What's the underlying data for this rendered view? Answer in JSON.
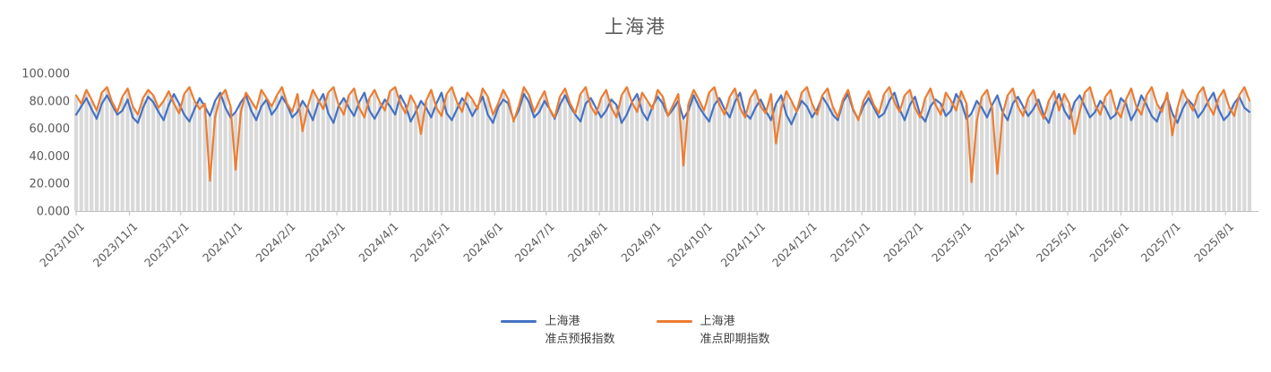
{
  "title": "上海港",
  "colors": {
    "series_forecast": "#4472C4",
    "series_spot": "#ED7D31",
    "drop_line": "#D9D9D9",
    "axis_line": "#BFBFBF",
    "tick_text": "#595959",
    "title_text": "#5B5B5B",
    "legend_text": "#404040"
  },
  "legend": {
    "item1_label": "上海港\n准点预报指数",
    "item2_label": "上海港\n准点即期指数"
  },
  "chart_data": {
    "type": "line",
    "title": "上海港",
    "xlabel": "",
    "ylabel": "",
    "ylim": [
      0,
      100
    ],
    "y_tick_labels": [
      "0.000",
      "20.000",
      "40.000",
      "60.000",
      "80.000",
      "100.000"
    ],
    "x_start_date": "2023/10/1",
    "x_step_days": 3,
    "x_tick_labels": [
      "2023/10/1",
      "2023/11/1",
      "2023/12/1",
      "2024/1/1",
      "2024/2/1",
      "2024/3/1",
      "2024/4/1",
      "2024/5/1",
      "2024/6/1",
      "2024/7/1",
      "2024/8/1",
      "2024/9/1",
      "2024/10/1",
      "2024/11/1",
      "2024/12/1",
      "2025/1/1",
      "2025/2/1",
      "2025/3/1",
      "2025/4/1",
      "2025/5/1",
      "2025/6/1",
      "2025/7/1",
      "2025/8/1"
    ],
    "grid": "no horizontal gridlines; vertical gray drop lines at every data point",
    "legend_position": "bottom",
    "series": [
      {
        "name": "上海港准点预报指数",
        "color": "#4472C4",
        "values": [
          70,
          76,
          82,
          74,
          67,
          78,
          84,
          77,
          70,
          73,
          81,
          68,
          64,
          75,
          83,
          79,
          72,
          66,
          77,
          85,
          78,
          70,
          65,
          74,
          82,
          76,
          69,
          80,
          86,
          75,
          68,
          72,
          79,
          84,
          73,
          66,
          76,
          81,
          70,
          75,
          83,
          77,
          68,
          72,
          80,
          74,
          66,
          78,
          85,
          71,
          64,
          76,
          82,
          75,
          69,
          79,
          86,
          73,
          67,
          74,
          81,
          76,
          70,
          84,
          77,
          65,
          72,
          80,
          75,
          68,
          78,
          86,
          71,
          66,
          74,
          82,
          77,
          69,
          76,
          83,
          70,
          64,
          75,
          81,
          78,
          66,
          73,
          85,
          79,
          68,
          72,
          80,
          74,
          67,
          77,
          84,
          76,
          70,
          65,
          78,
          82,
          75,
          68,
          73,
          81,
          77,
          64,
          70,
          79,
          85,
          72,
          66,
          76,
          83,
          78,
          69,
          74,
          80,
          67,
          73,
          84,
          76,
          70,
          65,
          77,
          82,
          74,
          68,
          79,
          86,
          71,
          67,
          75,
          81,
          73,
          66,
          78,
          84,
          70,
          63,
          72,
          80,
          76,
          68,
          74,
          83,
          77,
          70,
          66,
          79,
          85,
          73,
          67,
          76,
          82,
          75,
          68,
          71,
          80,
          86,
          74,
          66,
          77,
          83,
          70,
          65,
          76,
          81,
          78,
          69,
          73,
          85,
          79,
          67,
          71,
          80,
          75,
          68,
          77,
          84,
          72,
          66,
          78,
          83,
          76,
          69,
          74,
          81,
          70,
          64,
          77,
          85,
          73,
          67,
          79,
          84,
          76,
          68,
          72,
          80,
          75,
          67,
          70,
          82,
          78,
          66,
          73,
          84,
          77,
          69,
          65,
          76,
          83,
          71,
          64,
          74,
          81,
          77,
          68,
          73,
          80,
          86,
          74,
          66,
          70,
          78,
          83,
          75,
          72
        ]
      },
      {
        "name": "上海港准点即期指数",
        "color": "#ED7D31",
        "values": [
          84,
          78,
          88,
          81,
          73,
          86,
          90,
          79,
          72,
          83,
          89,
          76,
          70,
          82,
          88,
          84,
          75,
          80,
          87,
          78,
          71,
          85,
          90,
          80,
          74,
          78,
          22,
          68,
          83,
          88,
          76,
          30,
          72,
          86,
          80,
          74,
          88,
          82,
          76,
          84,
          90,
          78,
          72,
          85,
          58,
          76,
          88,
          81,
          74,
          86,
          90,
          77,
          70,
          84,
          89,
          75,
          68,
          82,
          88,
          79,
          73,
          87,
          90,
          78,
          71,
          84,
          77,
          56,
          80,
          88,
          75,
          69,
          85,
          90,
          79,
          72,
          86,
          81,
          74,
          89,
          83,
          70,
          78,
          88,
          81,
          65,
          76,
          90,
          84,
          72,
          80,
          87,
          74,
          68,
          83,
          89,
          78,
          71,
          85,
          90,
          76,
          70,
          82,
          88,
          75,
          68,
          84,
          90,
          79,
          72,
          86,
          80,
          74,
          88,
          83,
          69,
          77,
          85,
          33,
          78,
          88,
          81,
          73,
          86,
          90,
          77,
          70,
          83,
          89,
          75,
          68,
          82,
          88,
          76,
          71,
          85,
          49,
          74,
          87,
          80,
          72,
          86,
          90,
          78,
          70,
          84,
          89,
          76,
          68,
          81,
          88,
          74,
          66,
          80,
          87,
          77,
          71,
          85,
          90,
          79,
          72,
          84,
          88,
          75,
          68,
          82,
          89,
          77,
          70,
          86,
          80,
          73,
          87,
          78,
          21,
          65,
          83,
          88,
          74,
          27,
          70,
          84,
          89,
          76,
          69,
          82,
          88,
          75,
          67,
          80,
          87,
          73,
          85,
          78,
          56,
          72,
          86,
          90,
          77,
          70,
          83,
          88,
          74,
          68,
          81,
          89,
          76,
          70,
          84,
          90,
          78,
          72,
          86,
          55,
          75,
          88,
          80,
          73,
          85,
          90,
          77,
          70,
          82,
          88,
          76,
          69,
          84,
          90,
          80
        ]
      }
    ]
  }
}
